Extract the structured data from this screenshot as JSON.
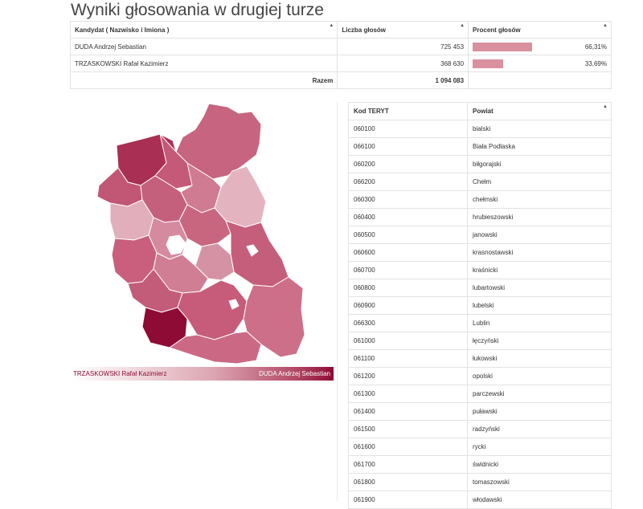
{
  "page": {
    "title": "Wyniki głosowania w drugiej turze"
  },
  "results": {
    "headers": [
      "Kandydat ( Nazwisko i Imiona )",
      "Liczba głosów",
      "Procent głosów"
    ],
    "rows": [
      {
        "name": "DUDA Andrzej Sebastian",
        "votes": "725 453",
        "percent": "66,31%",
        "share": 0.6631
      },
      {
        "name": "TRZASKOWSKI Rafał Kazimierz",
        "votes": "368 630",
        "percent": "33,69%",
        "share": 0.3369
      }
    ],
    "total_label": "Razem",
    "total_votes": "1 094 083"
  },
  "legend": {
    "left": "TRZASKOWSKI Rafał Kazimierz",
    "right": "DUDA Andrzej Sebastian"
  },
  "powiaty": {
    "headers": [
      "Kod TERYT",
      "Powiat"
    ],
    "rows": [
      [
        "060100",
        "bialski"
      ],
      [
        "066100",
        "Biała Podlaska"
      ],
      [
        "060200",
        "biłgorajski"
      ],
      [
        "066200",
        "Chełm"
      ],
      [
        "060300",
        "chełmski"
      ],
      [
        "060400",
        "hrubieszowski"
      ],
      [
        "060500",
        "janowski"
      ],
      [
        "060600",
        "krasnostawski"
      ],
      [
        "060700",
        "kraśnicki"
      ],
      [
        "060800",
        "lubartowski"
      ],
      [
        "060900",
        "lubelski"
      ],
      [
        "066300",
        "Lublin"
      ],
      [
        "061000",
        "łęczyński"
      ],
      [
        "061100",
        "łukowski"
      ],
      [
        "061200",
        "opolski"
      ],
      [
        "061300",
        "parczewski"
      ],
      [
        "061400",
        "puławski"
      ],
      [
        "061500",
        "radzyński"
      ],
      [
        "061600",
        "rycki"
      ],
      [
        "061700",
        "świdnicki"
      ],
      [
        "061800",
        "tomaszowski"
      ],
      [
        "061900",
        "włodawski"
      ]
    ]
  },
  "colors": {
    "accent": "#d9909f",
    "dark": "#8e0b36"
  }
}
